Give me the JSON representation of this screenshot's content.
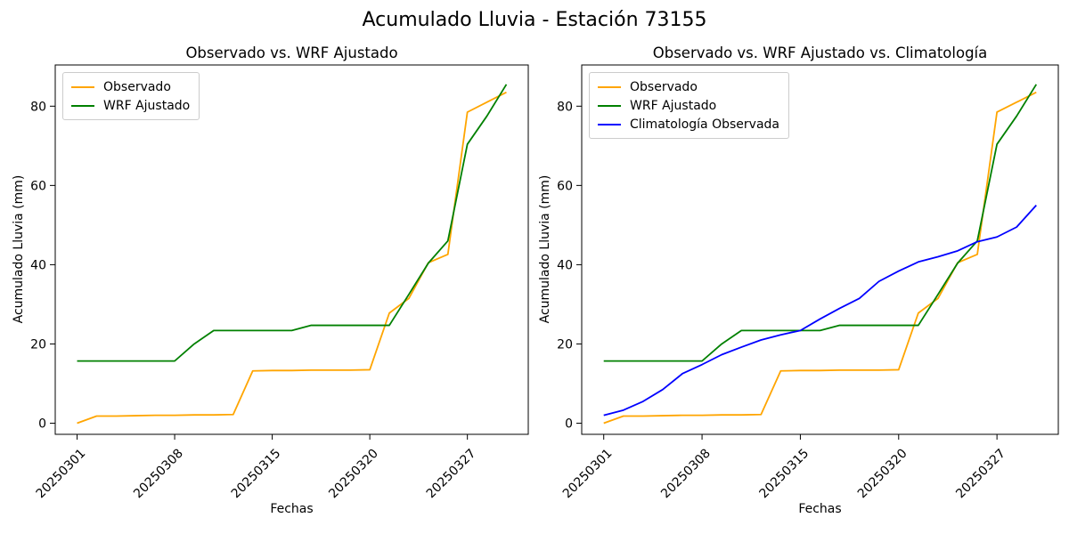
{
  "figure": {
    "suptitle": "Acumulado Lluvia - Estación 73155",
    "background": "#ffffff",
    "spine_color": "#000000"
  },
  "chart_data": [
    {
      "type": "line",
      "title": "Observado vs. WRF Ajustado",
      "xlabel": "Fechas",
      "ylabel": "Acumulado Lluvia (mm)",
      "x_tick_positions": [
        0,
        5,
        10,
        15,
        20
      ],
      "x_tick_labels": [
        "20250301",
        "20250308",
        "20250315",
        "20250320",
        "20250327"
      ],
      "x_tick_rotation": 45,
      "y_ticks": [
        0,
        20,
        40,
        60,
        80
      ],
      "xlim": [
        -1.12,
        23.12
      ],
      "ylim": [
        -2.8,
        90.4
      ],
      "grid": false,
      "legend_position": "upper-left",
      "series": [
        {
          "name": "Observado",
          "color": "#FFA500",
          "values": [
            0,
            1.8,
            1.8,
            1.9,
            2.0,
            2.0,
            2.1,
            2.1,
            2.2,
            13.2,
            13.3,
            13.3,
            13.4,
            13.4,
            13.4,
            13.5,
            27.8,
            31.5,
            40.5,
            42.6,
            78.5,
            81.0,
            83.5
          ]
        },
        {
          "name": "WRF Ajustado",
          "color": "#008000",
          "values": [
            15.7,
            15.7,
            15.7,
            15.7,
            15.7,
            15.7,
            20.0,
            23.4,
            23.4,
            23.4,
            23.4,
            23.4,
            24.7,
            24.7,
            24.7,
            24.7,
            24.7,
            32.5,
            40.4,
            46.0,
            70.4,
            77.5,
            85.5
          ]
        }
      ]
    },
    {
      "type": "line",
      "title": "Observado vs. WRF Ajustado vs. Climatología",
      "xlabel": "Fechas",
      "ylabel": "Acumulado Lluvia (mm)",
      "x_tick_positions": [
        0,
        5,
        10,
        15,
        20
      ],
      "x_tick_labels": [
        "20250301",
        "20250308",
        "20250315",
        "20250320",
        "20250327"
      ],
      "x_tick_rotation": 45,
      "y_ticks": [
        0,
        20,
        40,
        60,
        80
      ],
      "xlim": [
        -1.12,
        23.12
      ],
      "ylim": [
        -2.8,
        90.4
      ],
      "grid": false,
      "legend_position": "upper-left",
      "series": [
        {
          "name": "Observado",
          "color": "#FFA500",
          "values": [
            0,
            1.8,
            1.8,
            1.9,
            2.0,
            2.0,
            2.1,
            2.1,
            2.2,
            13.2,
            13.3,
            13.3,
            13.4,
            13.4,
            13.4,
            13.5,
            27.8,
            31.5,
            40.5,
            42.6,
            78.5,
            81.0,
            83.5
          ]
        },
        {
          "name": "WRF Ajustado",
          "color": "#008000",
          "values": [
            15.7,
            15.7,
            15.7,
            15.7,
            15.7,
            15.7,
            20.0,
            23.4,
            23.4,
            23.4,
            23.4,
            23.4,
            24.7,
            24.7,
            24.7,
            24.7,
            24.7,
            32.5,
            40.4,
            46.0,
            70.4,
            77.5,
            85.5
          ]
        },
        {
          "name": "Climatología Observada",
          "color": "#0000FF",
          "values": [
            2.0,
            3.3,
            5.5,
            8.5,
            12.5,
            14.8,
            17.3,
            19.2,
            21.0,
            22.3,
            23.4,
            26.3,
            29.0,
            31.5,
            35.8,
            38.4,
            40.7,
            42.0,
            43.5,
            45.8,
            47.0,
            49.5,
            55.0
          ]
        }
      ]
    }
  ]
}
